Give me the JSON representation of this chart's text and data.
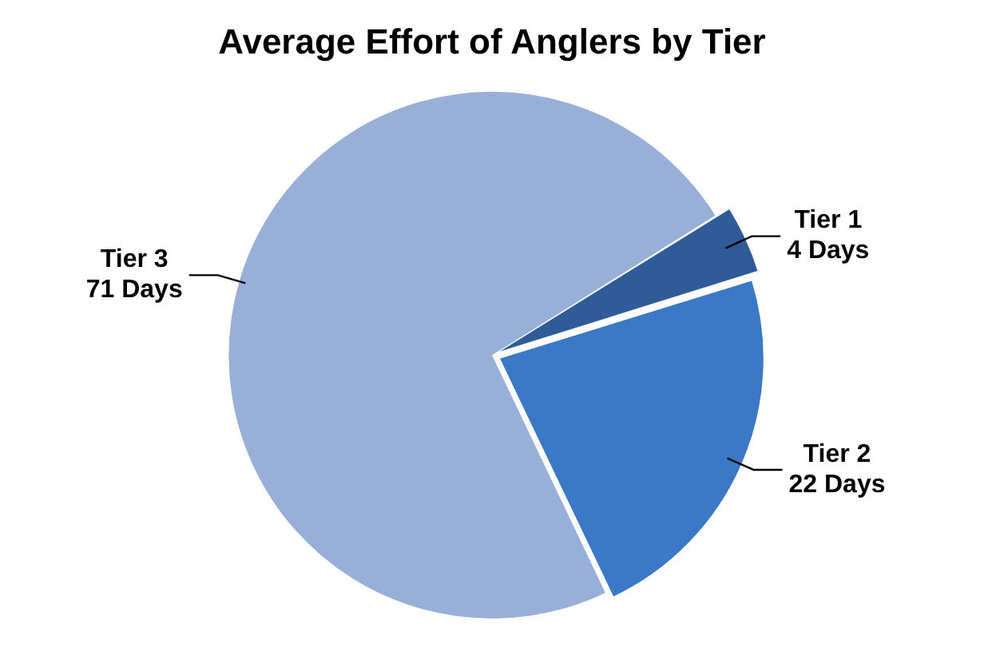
{
  "chart_data": {
    "type": "pie",
    "title": "Average Effort of Anglers by Tier",
    "categories": [
      "Tier 1",
      "Tier 2",
      "Tier 3"
    ],
    "values": [
      4,
      22,
      71
    ],
    "colors": [
      "#2f5c99",
      "#3b78c6",
      "#98afd8"
    ],
    "value_labels": [
      "4 Days",
      "22 Days",
      "71 Days"
    ],
    "legend": false
  }
}
